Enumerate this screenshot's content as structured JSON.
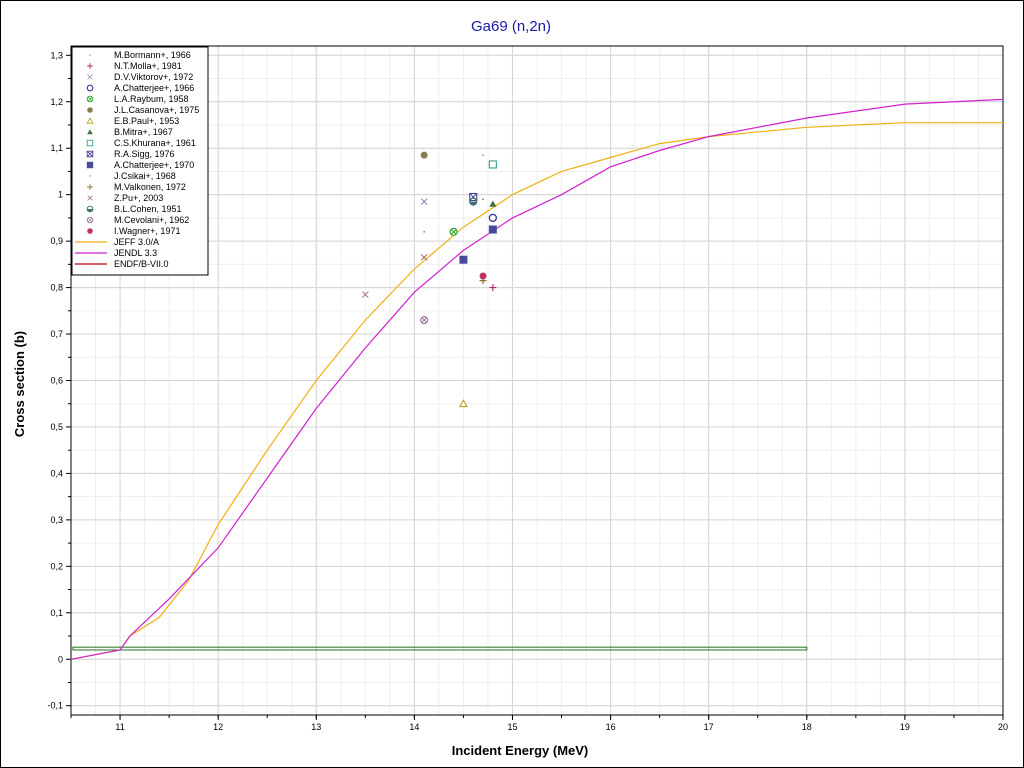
{
  "chart_data": {
    "type": "scatter",
    "title": "Ga69 (n,2n)",
    "xlabel": "Incident Energy (MeV)",
    "ylabel": "Cross section (b)",
    "xlim": [
      10.5,
      20
    ],
    "ylim": [
      -0.12,
      1.32
    ],
    "x_ticks": [
      11,
      12,
      13,
      14,
      15,
      16,
      17,
      18,
      19,
      20
    ],
    "x_tick_labels": [
      "11",
      "12",
      "13",
      "14",
      "15",
      "16",
      "17",
      "18",
      "19",
      "20"
    ],
    "y_ticks": [
      -0.1,
      0,
      0.1,
      0.2,
      0.3,
      0.4,
      0.5,
      0.6,
      0.7,
      0.8,
      0.9,
      1,
      1.1,
      1.2,
      1.3
    ],
    "y_tick_labels": [
      "-0,1",
      "0",
      "0,1",
      "0,2",
      "0,3",
      "0,4",
      "0,5",
      "0,6",
      "0,7",
      "0,8",
      "0,9",
      "1",
      "1,1",
      "1,2",
      "1,3"
    ],
    "grid": true,
    "legend_position": "top-left",
    "series": [
      {
        "name": "M.Bormann+, 1966",
        "marker": "dot",
        "color": "#7a7a9a",
        "points": [
          [
            14.7,
            0.99
          ]
        ]
      },
      {
        "name": "N.T.Molla+, 1981",
        "marker": "plus",
        "color": "#b03060",
        "points": [
          [
            14.8,
            0.8
          ]
        ]
      },
      {
        "name": "D.V.Viktorov+, 1972",
        "marker": "x",
        "color": "#8a8ab0",
        "points": [
          [
            14.1,
            0.985
          ]
        ]
      },
      {
        "name": "A.Chatterjee+, 1966",
        "marker": "circle-open",
        "color": "#303090",
        "points": [
          [
            14.8,
            0.95
          ]
        ]
      },
      {
        "name": "L.A.Raybum, 1958",
        "marker": "circle-cross",
        "color": "#30a030",
        "points": [
          [
            14.4,
            0.92
          ]
        ]
      },
      {
        "name": "J.L.Casanova+, 1975",
        "marker": "circle-filled",
        "color": "#8a7a50",
        "points": [
          [
            14.1,
            1.085
          ]
        ]
      },
      {
        "name": "E.B.Paul+, 1953",
        "marker": "triangle-open",
        "color": "#c0a020",
        "points": [
          [
            14.5,
            0.55
          ]
        ]
      },
      {
        "name": "B.Mitra+, 1967",
        "marker": "triangle-filled",
        "color": "#407040",
        "points": [
          [
            14.8,
            0.98
          ]
        ]
      },
      {
        "name": "C.S.Khurana+, 1961",
        "marker": "square-open",
        "color": "#30a090",
        "points": [
          [
            14.8,
            1.065
          ]
        ]
      },
      {
        "name": "R.A.Sigg, 1976",
        "marker": "square-cross",
        "color": "#404090",
        "points": [
          [
            14.6,
            0.995
          ]
        ]
      },
      {
        "name": "A.Chatterjee+, 1970",
        "marker": "square-filled",
        "color": "#4a4a9a",
        "points": [
          [
            14.5,
            0.86
          ],
          [
            14.8,
            0.925
          ]
        ]
      },
      {
        "name": "J.Csikai+, 1968",
        "marker": "dot",
        "color": "#909090",
        "points": [
          [
            14.1,
            0.92
          ],
          [
            14.7,
            1.085
          ]
        ]
      },
      {
        "name": "M.Valkonen, 1972",
        "marker": "plus",
        "color": "#8a7030",
        "points": [
          [
            14.7,
            0.815
          ]
        ]
      },
      {
        "name": "Z.Pu+, 2003",
        "marker": "x",
        "color": "#a07070",
        "points": [
          [
            13.5,
            0.785
          ],
          [
            14.1,
            0.865
          ]
        ]
      },
      {
        "name": "B.L.Cohen, 1951",
        "marker": "circle-half",
        "color": "#407070",
        "points": [
          [
            14.6,
            0.985
          ]
        ]
      },
      {
        "name": "M.Cevolani+, 1962",
        "marker": "circle-cross",
        "color": "#9a7a9a",
        "points": [
          [
            14.1,
            0.73
          ]
        ]
      },
      {
        "name": "I.Wagner+, 1971",
        "marker": "circle-filled",
        "color": "#c03060",
        "points": [
          [
            14.7,
            0.825
          ]
        ]
      },
      {
        "name": "JEFF 3.0/A",
        "marker": "line",
        "color": "#f0b010",
        "points": [
          [
            10.5,
            0.0
          ],
          [
            11.0,
            0.02
          ],
          [
            11.1,
            0.05
          ],
          [
            11.4,
            0.09
          ],
          [
            11.7,
            0.17
          ],
          [
            12.0,
            0.29
          ],
          [
            12.5,
            0.45
          ],
          [
            13.0,
            0.6
          ],
          [
            13.5,
            0.73
          ],
          [
            14.0,
            0.84
          ],
          [
            14.5,
            0.93
          ],
          [
            15.0,
            1.0
          ],
          [
            15.5,
            1.05
          ],
          [
            16.0,
            1.08
          ],
          [
            16.5,
            1.11
          ],
          [
            17.0,
            1.125
          ],
          [
            18.0,
            1.145
          ],
          [
            19.0,
            1.155
          ],
          [
            20.0,
            1.155
          ]
        ]
      },
      {
        "name": "JENDL 3.3",
        "marker": "line",
        "color": "#d020d0",
        "points": [
          [
            10.5,
            0.0
          ],
          [
            11.0,
            0.02
          ],
          [
            11.1,
            0.05
          ],
          [
            11.5,
            0.13
          ],
          [
            12.0,
            0.24
          ],
          [
            12.5,
            0.39
          ],
          [
            13.0,
            0.54
          ],
          [
            13.5,
            0.67
          ],
          [
            14.0,
            0.79
          ],
          [
            14.5,
            0.88
          ],
          [
            15.0,
            0.95
          ],
          [
            15.5,
            1.0
          ],
          [
            16.0,
            1.06
          ],
          [
            16.5,
            1.095
          ],
          [
            17.0,
            1.125
          ],
          [
            17.5,
            1.145
          ],
          [
            18.0,
            1.165
          ],
          [
            19.0,
            1.195
          ],
          [
            20.0,
            1.205
          ]
        ]
      },
      {
        "name": "ENDF/B-VII.0",
        "marker": "line",
        "color": "#c00000",
        "points": []
      }
    ],
    "annotations": [
      {
        "type": "box",
        "color": "#207020",
        "x0": 10.52,
        "x1": 18.0,
        "y0": 0.02,
        "y1": 0.026
      }
    ]
  }
}
